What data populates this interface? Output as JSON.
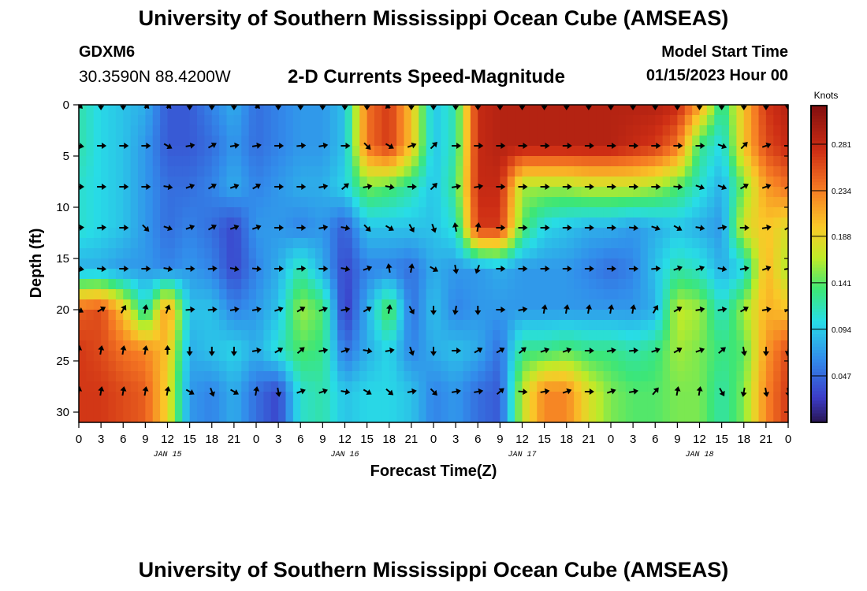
{
  "header": {
    "title": "University of Southern Mississippi Ocean Cube (AMSEAS)",
    "station": "GDXM6",
    "coords": "30.3590N  88.4200W",
    "subtitle": "2-D Currents Speed-Magnitude",
    "model_start_label": "Model Start Time",
    "model_start_value": "01/15/2023 Hour 00"
  },
  "footer": {
    "title": "University of Southern Mississippi Ocean Cube (AMSEAS)"
  },
  "chart_data": {
    "type": "heatmap",
    "title": "2-D Currents Speed-Magnitude",
    "xlabel": "Forecast Time(Z)",
    "ylabel": "Depth (ft)",
    "xlim": [
      0,
      96
    ],
    "ylim": [
      31,
      0
    ],
    "x_tick_values": [
      0,
      3,
      6,
      9,
      12,
      15,
      18,
      21,
      24,
      27,
      30,
      33,
      36,
      39,
      42,
      45,
      48,
      51,
      54,
      57,
      60,
      63,
      66,
      69,
      72,
      75,
      78,
      81,
      84,
      87,
      90,
      93,
      96
    ],
    "x_tick_labels": [
      "0",
      "3",
      "6",
      "9",
      "12",
      "15",
      "18",
      "21",
      "0",
      "3",
      "6",
      "9",
      "12",
      "15",
      "18",
      "21",
      "0",
      "3",
      "6",
      "9",
      "12",
      "15",
      "18",
      "21",
      "0",
      "3",
      "6",
      "9",
      "12",
      "15",
      "18",
      "21",
      "0"
    ],
    "y_ticks": [
      0,
      5,
      10,
      15,
      20,
      25,
      30
    ],
    "day_labels": [
      {
        "x": 12,
        "label": "JAN 15"
      },
      {
        "x": 36,
        "label": "JAN 16"
      },
      {
        "x": 60,
        "label": "JAN 17"
      },
      {
        "x": 84,
        "label": "JAN 18"
      }
    ],
    "colorbar": {
      "label": "Knots",
      "range": [
        0.0,
        0.32
      ],
      "ticks": [
        0.047,
        0.094,
        0.141,
        0.188,
        0.234,
        0.281
      ],
      "tick_labels": [
        "0.047",
        "0.094",
        "0.141",
        "0.188",
        "0.234",
        "0.281"
      ]
    },
    "times": [
      0,
      3,
      6,
      9,
      12,
      15,
      18,
      21,
      24,
      27,
      30,
      33,
      36,
      39,
      42,
      45,
      48,
      51,
      54,
      57,
      60,
      63,
      66,
      69,
      72,
      75,
      78,
      81,
      84,
      87,
      90,
      93,
      96
    ],
    "depths": [
      0,
      4,
      8,
      12,
      16,
      20,
      24,
      28
    ],
    "speed_knots": [
      [
        0.12,
        0.1,
        0.09,
        0.08,
        0.04,
        0.04,
        0.06,
        0.08,
        0.05,
        0.06,
        0.07,
        0.07,
        0.09,
        0.24,
        0.27,
        0.2,
        0.09,
        0.12,
        0.28,
        0.29,
        0.29,
        0.29,
        0.29,
        0.29,
        0.29,
        0.29,
        0.29,
        0.28,
        0.22,
        0.12,
        0.2,
        0.27,
        0.29
      ],
      [
        0.12,
        0.1,
        0.09,
        0.07,
        0.04,
        0.04,
        0.05,
        0.07,
        0.05,
        0.06,
        0.07,
        0.07,
        0.09,
        0.24,
        0.27,
        0.2,
        0.09,
        0.12,
        0.28,
        0.29,
        0.29,
        0.29,
        0.29,
        0.29,
        0.29,
        0.28,
        0.27,
        0.24,
        0.13,
        0.1,
        0.2,
        0.26,
        0.28
      ],
      [
        0.11,
        0.1,
        0.09,
        0.07,
        0.05,
        0.05,
        0.06,
        0.08,
        0.06,
        0.07,
        0.08,
        0.08,
        0.1,
        0.15,
        0.14,
        0.12,
        0.09,
        0.13,
        0.28,
        0.28,
        0.16,
        0.16,
        0.16,
        0.17,
        0.17,
        0.17,
        0.16,
        0.14,
        0.11,
        0.08,
        0.15,
        0.22,
        0.24
      ],
      [
        0.11,
        0.1,
        0.09,
        0.07,
        0.05,
        0.06,
        0.05,
        0.03,
        0.07,
        0.07,
        0.06,
        0.07,
        0.04,
        0.09,
        0.09,
        0.09,
        0.09,
        0.11,
        0.27,
        0.27,
        0.14,
        0.1,
        0.09,
        0.08,
        0.08,
        0.07,
        0.08,
        0.09,
        0.08,
        0.07,
        0.18,
        0.2,
        0.18
      ],
      [
        0.08,
        0.08,
        0.07,
        0.07,
        0.06,
        0.07,
        0.06,
        0.03,
        0.06,
        0.08,
        0.12,
        0.08,
        0.03,
        0.06,
        0.06,
        0.05,
        0.08,
        0.07,
        0.07,
        0.08,
        0.07,
        0.07,
        0.07,
        0.06,
        0.05,
        0.06,
        0.09,
        0.12,
        0.11,
        0.08,
        0.1,
        0.21,
        0.16
      ],
      [
        0.25,
        0.26,
        0.2,
        0.11,
        0.23,
        0.09,
        0.09,
        0.06,
        0.07,
        0.09,
        0.16,
        0.14,
        0.02,
        0.08,
        0.15,
        0.05,
        0.09,
        0.06,
        0.07,
        0.07,
        0.07,
        0.07,
        0.07,
        0.07,
        0.07,
        0.07,
        0.08,
        0.17,
        0.16,
        0.11,
        0.16,
        0.21,
        0.2
      ],
      [
        0.27,
        0.26,
        0.24,
        0.23,
        0.2,
        0.08,
        0.09,
        0.1,
        0.08,
        0.11,
        0.14,
        0.13,
        0.05,
        0.08,
        0.1,
        0.06,
        0.08,
        0.09,
        0.08,
        0.05,
        0.13,
        0.13,
        0.14,
        0.13,
        0.13,
        0.12,
        0.13,
        0.16,
        0.15,
        0.13,
        0.14,
        0.22,
        0.26
      ],
      [
        0.27,
        0.27,
        0.26,
        0.25,
        0.19,
        0.07,
        0.06,
        0.08,
        0.05,
        0.03,
        0.11,
        0.12,
        0.09,
        0.1,
        0.1,
        0.09,
        0.06,
        0.07,
        0.05,
        0.04,
        0.17,
        0.23,
        0.23,
        0.18,
        0.15,
        0.14,
        0.14,
        0.15,
        0.15,
        0.12,
        0.15,
        0.23,
        0.27
      ]
    ],
    "arrow_angles_deg": [
      [
        45,
        90,
        90,
        45,
        45,
        90,
        90,
        90,
        45,
        90,
        90,
        90,
        90,
        90,
        135,
        90,
        90,
        90,
        90,
        90,
        90,
        90,
        90,
        90,
        90,
        90,
        90,
        90,
        90,
        90,
        90,
        90,
        90
      ],
      [
        10,
        0,
        0,
        0,
        30,
        -10,
        -30,
        -10,
        -10,
        0,
        -5,
        -10,
        0,
        45,
        30,
        -20,
        -45,
        0,
        0,
        0,
        0,
        0,
        0,
        0,
        0,
        0,
        0,
        0,
        0,
        20,
        -45,
        -20,
        0
      ],
      [
        0,
        0,
        0,
        0,
        10,
        -20,
        -30,
        -20,
        -30,
        0,
        0,
        -10,
        -40,
        -10,
        10,
        0,
        -45,
        -10,
        -10,
        0,
        0,
        0,
        0,
        0,
        0,
        0,
        0,
        5,
        20,
        20,
        -30,
        -20,
        -30
      ],
      [
        -5,
        -5,
        0,
        45,
        20,
        -20,
        -30,
        -20,
        -20,
        0,
        0,
        -10,
        10,
        45,
        30,
        60,
        70,
        -100,
        -80,
        0,
        0,
        0,
        0,
        0,
        0,
        5,
        20,
        30,
        10,
        -10,
        0,
        -10,
        -30
      ],
      [
        10,
        5,
        0,
        0,
        10,
        0,
        -5,
        10,
        5,
        0,
        -5,
        0,
        10,
        -20,
        -100,
        -80,
        30,
        80,
        110,
        0,
        0,
        0,
        0,
        0,
        0,
        0,
        -5,
        -20,
        -20,
        10,
        -10,
        -20,
        -10
      ],
      [
        30,
        -30,
        -60,
        -80,
        -70,
        -5,
        -5,
        -10,
        -10,
        -20,
        -30,
        -20,
        -10,
        -30,
        -80,
        60,
        90,
        100,
        90,
        0,
        -10,
        -80,
        -80,
        -80,
        -80,
        -80,
        -60,
        -30,
        -10,
        -10,
        -30,
        -10,
        -30
      ],
      [
        -80,
        -80,
        -80,
        -80,
        -90,
        90,
        90,
        90,
        -10,
        -30,
        -40,
        -10,
        -20,
        10,
        -10,
        70,
        90,
        0,
        -30,
        -30,
        -40,
        -20,
        -20,
        0,
        -10,
        -5,
        -20,
        -30,
        -20,
        -40,
        80,
        90,
        100
      ],
      [
        -80,
        -80,
        -80,
        -80,
        -80,
        30,
        70,
        30,
        -80,
        80,
        -20,
        -20,
        10,
        30,
        40,
        -10,
        45,
        -10,
        -10,
        -40,
        5,
        -10,
        -20,
        0,
        -20,
        -10,
        -50,
        -80,
        -80,
        60,
        100,
        80,
        80
      ]
    ]
  }
}
